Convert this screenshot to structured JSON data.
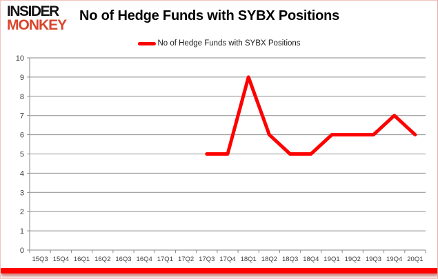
{
  "brand": {
    "line1": "INSIDER",
    "line2": "MONKEY",
    "line1_color": "#121212",
    "line2_color": "#d9452c"
  },
  "header": {
    "title": "No of Hedge Funds with SYBX Positions"
  },
  "legend": {
    "label": "No of Hedge Funds with SYBX Positions",
    "swatch_color": "#ff0000"
  },
  "chart_data": {
    "type": "line",
    "title": "No of Hedge Funds with SYBX Positions",
    "categories": [
      "15Q3",
      "15Q4",
      "16Q1",
      "16Q2",
      "16Q3",
      "16Q4",
      "17Q1",
      "17Q2",
      "17Q3",
      "17Q4",
      "18Q1",
      "18Q2",
      "18Q3",
      "18Q4",
      "19Q1",
      "19Q2",
      "19Q3",
      "19Q4",
      "20Q1"
    ],
    "series": [
      {
        "name": "No of Hedge Funds with SYBX Positions",
        "color": "#ff0000",
        "values": [
          null,
          null,
          null,
          null,
          null,
          null,
          null,
          null,
          5,
          5,
          9,
          6,
          5,
          5,
          6,
          6,
          6,
          7,
          6
        ]
      }
    ],
    "xlabel": "",
    "ylabel": "",
    "ylim": [
      0,
      10
    ],
    "ytick_step": 1,
    "yticks": [
      0,
      1,
      2,
      3,
      4,
      5,
      6,
      7,
      8,
      9,
      10
    ],
    "grid": true,
    "gridline_color": "#8a8a8a",
    "axis_color": "#8a8a8a",
    "tick_label_color": "#3d3d3d",
    "legend_position": "top-center"
  },
  "footer": {
    "stripe_color": "#fe0202"
  }
}
